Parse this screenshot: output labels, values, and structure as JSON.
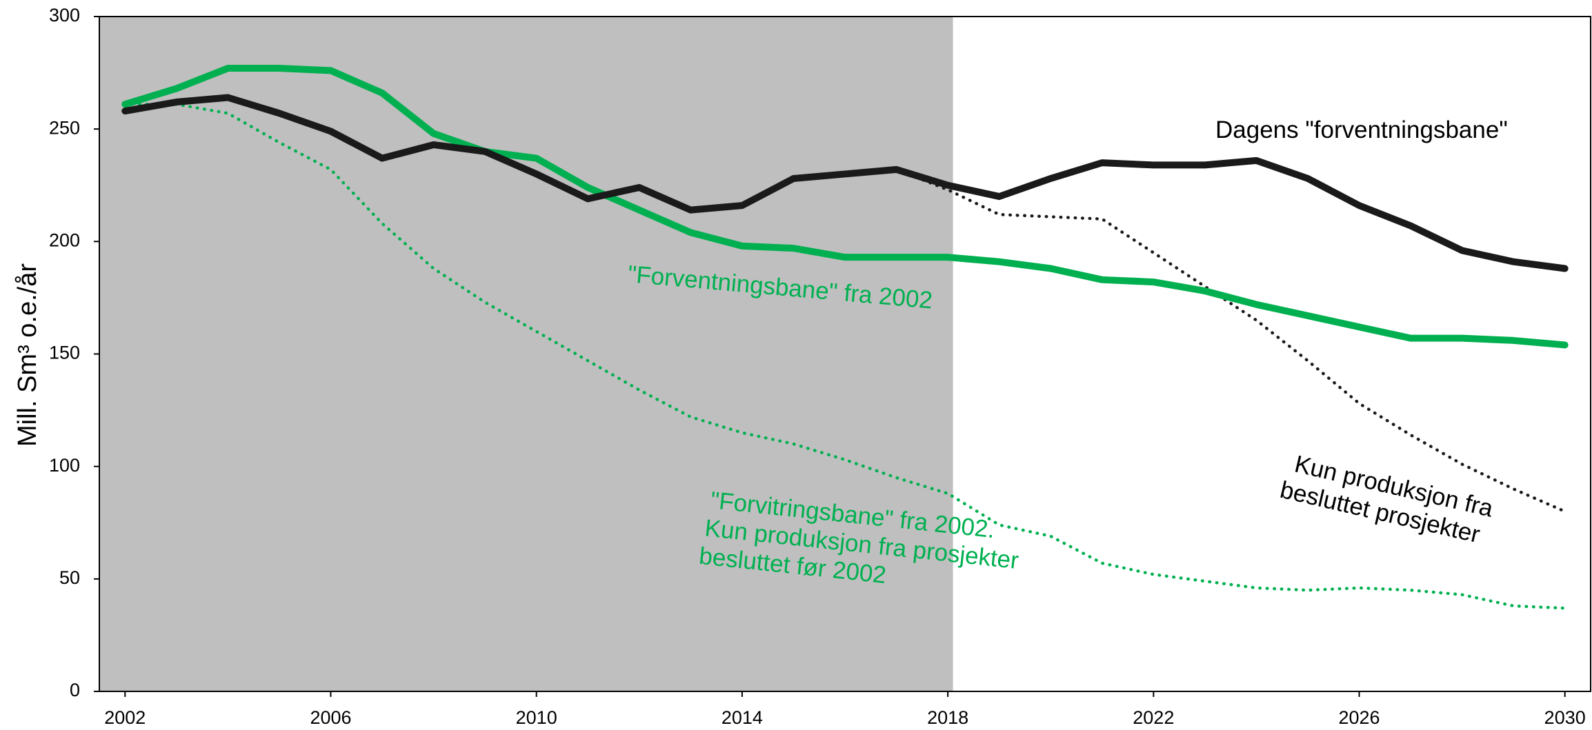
{
  "chart_data": {
    "type": "line",
    "y_label": "Mill. Sm³ o.e./år",
    "x": [
      2002,
      2003,
      2004,
      2005,
      2006,
      2007,
      2008,
      2009,
      2010,
      2011,
      2012,
      2013,
      2014,
      2015,
      2016,
      2017,
      2018,
      2019,
      2020,
      2021,
      2022,
      2023,
      2024,
      2025,
      2026,
      2027,
      2028,
      2029,
      2030
    ],
    "xlim": [
      2001.5,
      2030.5
    ],
    "xticks": [
      2002,
      2006,
      2010,
      2014,
      2018,
      2022,
      2026,
      2030
    ],
    "ylim": [
      0,
      300
    ],
    "yticks": [
      0,
      50,
      100,
      150,
      200,
      250,
      300
    ],
    "shaded_region": [
      2001.5,
      2018.1
    ],
    "shade_color": "#bfbfbf",
    "series": [
      {
        "color": "#00b050",
        "style": "dotted",
        "values": [
          261,
          261,
          257,
          244,
          232,
          208,
          188,
          173,
          160,
          147,
          134,
          122,
          115,
          110,
          103,
          95,
          88,
          74,
          69,
          57,
          52,
          49,
          46,
          45,
          46,
          45,
          43,
          38,
          37
        ]
      },
      {
        "color": "#1a1a1a",
        "style": "dotted",
        "values": [
          null,
          null,
          null,
          null,
          null,
          null,
          null,
          null,
          null,
          null,
          null,
          null,
          null,
          null,
          null,
          232,
          223,
          212,
          211,
          210,
          195,
          180,
          165,
          147,
          128,
          114,
          101,
          90,
          80
        ]
      },
      {
        "color": "#00b050",
        "style": "solid",
        "values": [
          261,
          268,
          277,
          277,
          276,
          266,
          248,
          240,
          237,
          224,
          214,
          204,
          198,
          197,
          193,
          193,
          193,
          191,
          188,
          183,
          182,
          178,
          172,
          167,
          162,
          157,
          157,
          156,
          154
        ]
      },
      {
        "color": "#1a1a1a",
        "style": "solid",
        "values": [
          258,
          262,
          264,
          257,
          249,
          237,
          243,
          240,
          230,
          219,
          224,
          214,
          216,
          228,
          230,
          232,
          225,
          220,
          228,
          235,
          234,
          234,
          236,
          228,
          216,
          207,
          196,
          191,
          188
        ]
      }
    ],
    "annotations": [
      {
        "lines": [
          "Dagens \"forventningsbane\""
        ],
        "color": "#000000"
      },
      {
        "lines": [
          "\"Forventningsbane\" fra 2002"
        ],
        "color": "#00b050"
      },
      {
        "lines": [
          "\"Forvitringsbane\" fra 2002.",
          "Kun produksjon fra prosjekter",
          "besluttet før 2002"
        ],
        "color": "#00b050"
      },
      {
        "lines": [
          "Kun produksjon fra",
          "besluttet prosjekter"
        ],
        "color": "#000000"
      }
    ]
  }
}
